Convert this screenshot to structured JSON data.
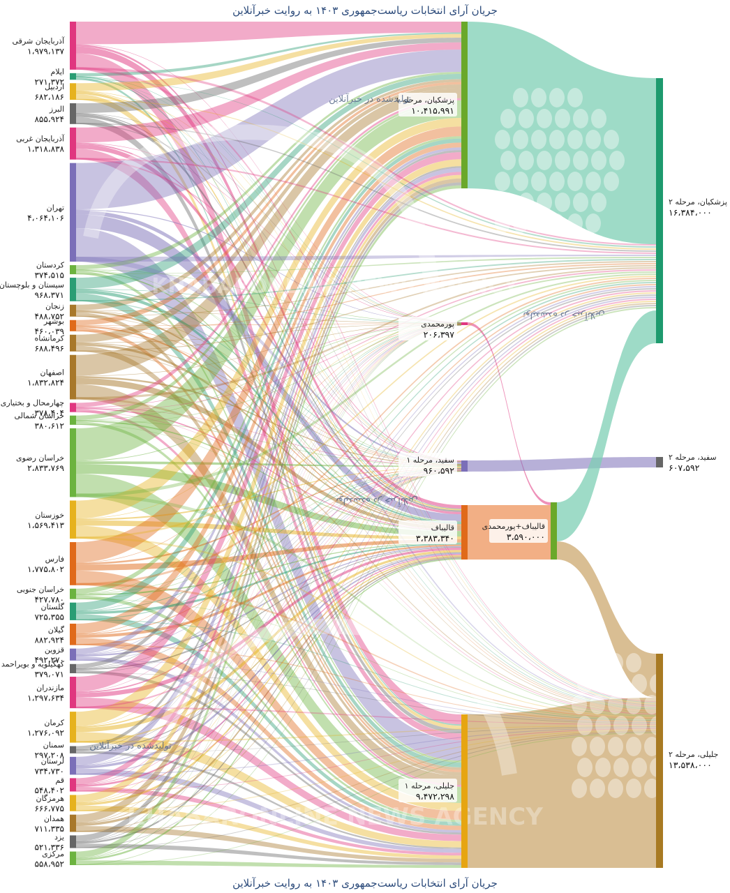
{
  "title_top": "جریان آرای انتخابات ریاست‌جمهوری ۱۴۰۳ به روایت خبرآنلاین",
  "title_bottom": "جریان آرای انتخابات ریاست‌جمهوری ۱۴۰۳ به روایت خبرآنلاین",
  "credit": "تولیدشده در خبرآنلاین",
  "watermark": {
    "text": "KHABARONLINE NEWS AGENCY"
  },
  "chart_data": {
    "type": "sankey",
    "title": "جریان آرای انتخابات ریاست‌جمهوری ۱۴۰۳ به روایت خبرآنلاین",
    "sources": [
      {
        "name": "آذربایجان شرقی",
        "value": "۱،۹۷۹،۱۳۷",
        "color": "#e0367f"
      },
      {
        "name": "ایلام",
        "value": "۲۷۱،۳۷۲",
        "color": "#2a9d74"
      },
      {
        "name": "اردبیل",
        "value": "۶۸۲،۱۸۶",
        "color": "#e6b21e"
      },
      {
        "name": "البرز",
        "value": "۸۵۵،۹۲۴",
        "color": "#666666"
      },
      {
        "name": "آذربایجان غربی",
        "value": "۱،۳۱۸،۸۳۸",
        "color": "#e0367f"
      },
      {
        "name": "تهران",
        "value": "۴،۰۶۴،۱۰۶",
        "color": "#7b6fb8"
      },
      {
        "name": "کردستان",
        "value": "۳۷۴،۵۱۵",
        "color": "#6cb33f"
      },
      {
        "name": "سیستان و بلوچستان",
        "value": "۹۶۸،۳۷۱",
        "color": "#2a9d74"
      },
      {
        "name": "زنجان",
        "value": "۴۸۸،۷۵۲",
        "color": "#a8782a"
      },
      {
        "name": "بوشهر",
        "value": "۴۶۰،۰۳۹",
        "color": "#e06a1a"
      },
      {
        "name": "کرمانشاه",
        "value": "۶۸۸،۴۹۶",
        "color": "#a8782a"
      },
      {
        "name": "اصفهان",
        "value": "۱،۸۳۲،۸۲۴",
        "color": "#a8782a"
      },
      {
        "name": "چهارمحال و بختیاری",
        "value": "۳۷۸،۴۰۴",
        "color": "#e0367f"
      },
      {
        "name": "خراسان شمالی",
        "value": "۳۸۰،۶۱۲",
        "color": "#6cb33f"
      },
      {
        "name": "خراسان رضوی",
        "value": "۲،۸۳۳،۷۶۹",
        "color": "#6cb33f"
      },
      {
        "name": "خوزستان",
        "value": "۱،۵۶۹،۴۱۳",
        "color": "#e6b21e"
      },
      {
        "name": "فارس",
        "value": "۱،۷۷۵،۸۰۲",
        "color": "#e06a1a"
      },
      {
        "name": "خراسان جنوبی",
        "value": "۴۲۷،۷۸۰",
        "color": "#6cb33f"
      },
      {
        "name": "گلستان",
        "value": "۷۲۵،۳۵۵",
        "color": "#2a9d74"
      },
      {
        "name": "گیلان",
        "value": "۸۸۲،۹۲۴",
        "color": "#e06a1a"
      },
      {
        "name": "قزوین",
        "value": "۴۹۲،۲۷۰",
        "color": "#7b6fb8"
      },
      {
        "name": "کهگیلویه و بویراحمد",
        "value": "۳۷۹،۰۷۱",
        "color": "#666666"
      },
      {
        "name": "مازندران",
        "value": "۱،۲۹۷،۶۳۴",
        "color": "#e0367f"
      },
      {
        "name": "کرمان",
        "value": "۱،۲۷۶،۰۹۲",
        "color": "#e6b21e"
      },
      {
        "name": "سمنان",
        "value": "۲۹۷،۲۰۸",
        "color": "#666666"
      },
      {
        "name": "لرستان",
        "value": "۷۳۴،۷۳۰",
        "color": "#7b6fb8"
      },
      {
        "name": "قم",
        "value": "۵۴۸،۴۰۲",
        "color": "#e0367f"
      },
      {
        "name": "هرمزگان",
        "value": "۶۶۶،۷۷۵",
        "color": "#e6b21e"
      },
      {
        "name": "همدان",
        "value": "۷۱۱،۳۳۵",
        "color": "#a8782a"
      },
      {
        "name": "یزد",
        "value": "۵۲۱،۳۳۶",
        "color": "#666666"
      },
      {
        "name": "مرکزی",
        "value": "۵۵۸،۹۵۲",
        "color": "#6cb33f"
      }
    ],
    "round1": [
      {
        "name": "پزشکیان، مرحله ۱",
        "value": "۱۰،۴۱۵،۹۹۱",
        "color": "#6aa82a"
      },
      {
        "name": "پورمحمدی",
        "value": "۲۰۶،۳۹۷",
        "color": "#e0367f"
      },
      {
        "name": "سفید، مرحله ۱",
        "value": "۹۶۰،۵۹۲",
        "color": "#7b6fb8"
      },
      {
        "name": "قالیباف",
        "value": "۳،۳۸۳،۳۴۰",
        "color": "#e06a1a"
      },
      {
        "name": "جلیلی، مرحله ۱",
        "value": "۹،۴۷۲،۲۹۸",
        "color": "#e6a512"
      }
    ],
    "merge": {
      "name": "قالیباف+پورمحمدی",
      "value": "۳،۵۹۰،۰۰۰",
      "color": "#6aa82a"
    },
    "round2": [
      {
        "name": "پزشکیان، مرحله ۲",
        "value": "۱۶،۳۸۴،۰۰۰",
        "color": "#1e9a6e"
      },
      {
        "name": "سفید، مرحله ۲",
        "value": "۶۰۷،۵۹۲",
        "color": "#666666"
      },
      {
        "name": "جلیلی، مرحله ۲",
        "value": "۱۳،۵۳۸،۰۰۰",
        "color": "#a87a22"
      }
    ]
  }
}
